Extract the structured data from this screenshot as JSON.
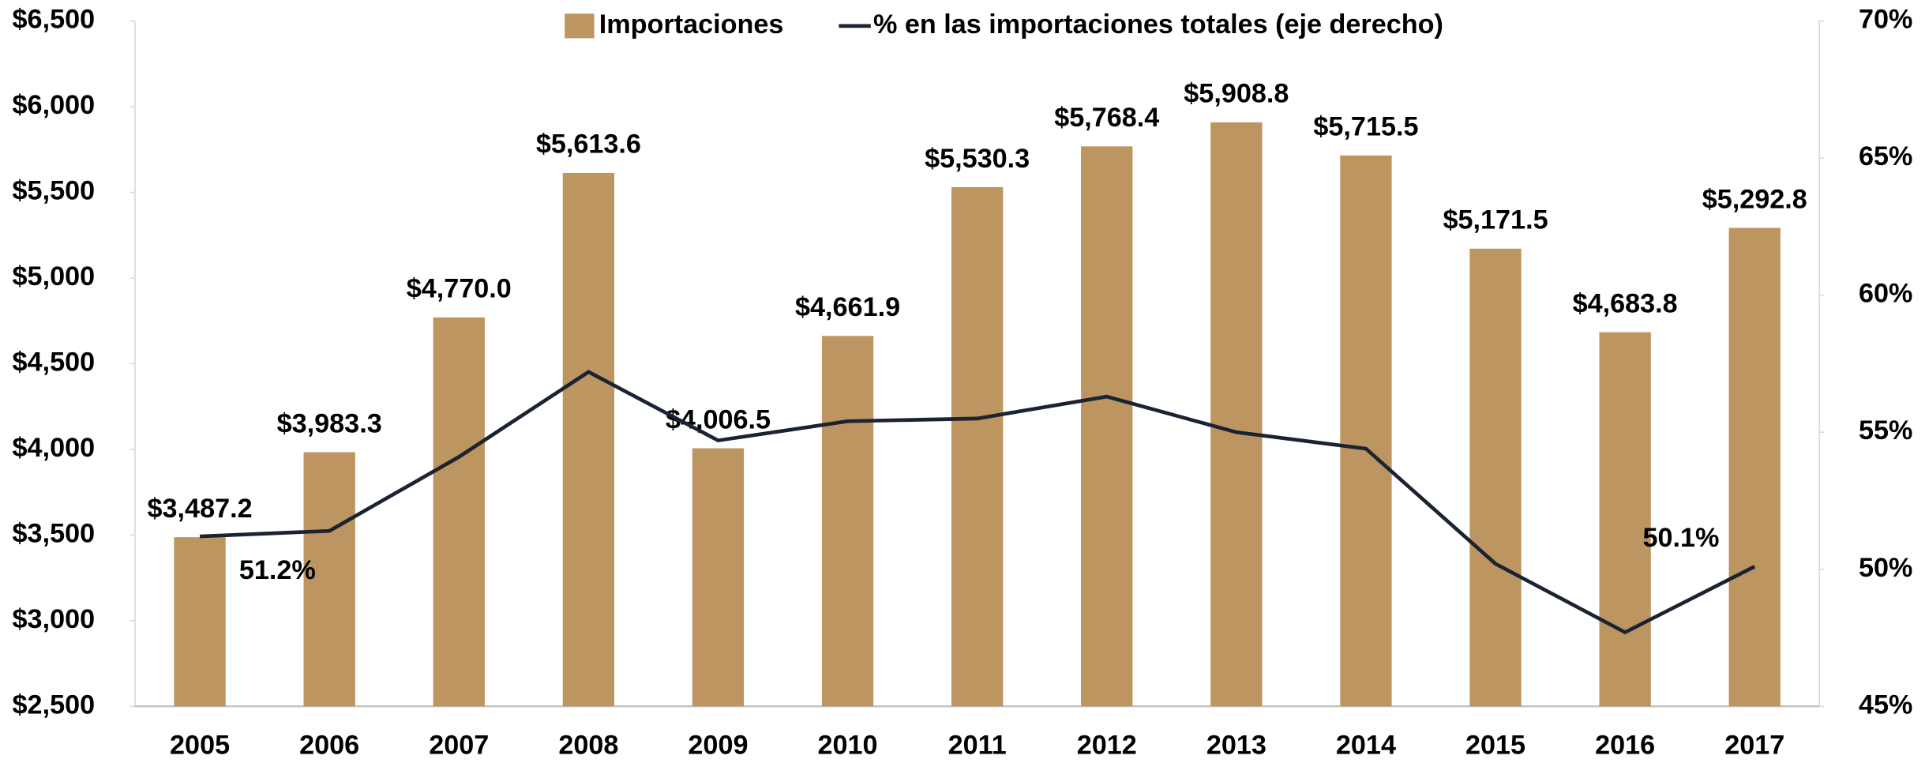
{
  "chart_data": {
    "type": "bar_line",
    "categories": [
      "2005",
      "2006",
      "2007",
      "2008",
      "2009",
      "2010",
      "2011",
      "2012",
      "2013",
      "2014",
      "2015",
      "2016",
      "2017"
    ],
    "series": [
      {
        "name": "Importaciones",
        "type": "bar",
        "color": "#bc9560",
        "values": [
          3487.2,
          3983.3,
          4770.0,
          5613.6,
          4006.5,
          4661.9,
          5530.3,
          5768.4,
          5908.8,
          5715.5,
          5171.5,
          4683.8,
          5292.8
        ],
        "value_labels": [
          "$3,487.2",
          "$3,983.3",
          "$4,770.0",
          "$5,613.6",
          "$4,006.5",
          "$4,661.9",
          "$5,530.3",
          "$5,768.4",
          "$5,908.8",
          "$5,715.5",
          "$5,171.5",
          "$4,683.8",
          "$5,292.8"
        ]
      },
      {
        "name": "% en las importaciones totales (eje derecho)",
        "type": "line",
        "axis": "y2",
        "color": "#1b2333",
        "values": [
          51.2,
          51.4,
          54.1,
          57.2,
          54.7,
          55.4,
          55.5,
          56.3,
          55.0,
          54.4,
          50.2,
          47.7,
          50.1
        ],
        "value_labels": [
          "51.2%",
          null,
          null,
          null,
          null,
          null,
          null,
          null,
          null,
          null,
          null,
          null,
          "50.1%"
        ]
      }
    ],
    "ylim": [
      2500,
      6500
    ],
    "yticks": [
      {
        "value": 2500,
        "label": "$2,500"
      },
      {
        "value": 3000,
        "label": "$3,000"
      },
      {
        "value": 3500,
        "label": "$3,500"
      },
      {
        "value": 4000,
        "label": "$4,000"
      },
      {
        "value": 4500,
        "label": "$4,500"
      },
      {
        "value": 5000,
        "label": "$5,000"
      },
      {
        "value": 5500,
        "label": "$5,500"
      },
      {
        "value": 6000,
        "label": "$6,000"
      },
      {
        "value": 6500,
        "label": "$6,500"
      }
    ],
    "y2lim": [
      45,
      70
    ],
    "y2ticks": [
      {
        "value": 45,
        "label": "45%"
      },
      {
        "value": 50,
        "label": "50%"
      },
      {
        "value": 55,
        "label": "55%"
      },
      {
        "value": 60,
        "label": "60%"
      },
      {
        "value": 65,
        "label": "65%"
      },
      {
        "value": 70,
        "label": "70%"
      }
    ],
    "legend": "top"
  }
}
